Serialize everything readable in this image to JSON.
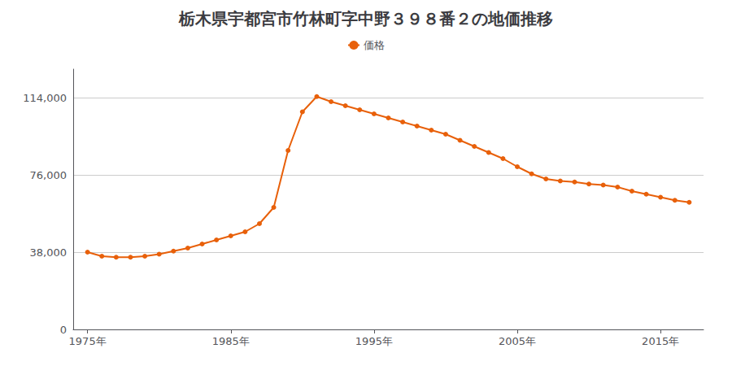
{
  "chart_data": {
    "type": "line",
    "title": "栃木県宇都宮市竹林町字中野３９８番２の地価推移",
    "x": [
      1975,
      1976,
      1977,
      1978,
      1979,
      1980,
      1981,
      1982,
      1983,
      1984,
      1985,
      1986,
      1987,
      1988,
      1989,
      1990,
      1991,
      1992,
      1993,
      1994,
      1995,
      1996,
      1997,
      1998,
      1999,
      2000,
      2001,
      2002,
      2003,
      2004,
      2005,
      2006,
      2007,
      2008,
      2009,
      2010,
      2011,
      2012,
      2013,
      2014,
      2015,
      2016,
      2017
    ],
    "series": [
      {
        "name": "価格",
        "color": "#E8600A",
        "marker": "circle",
        "values": [
          38000,
          36000,
          35500,
          35500,
          36000,
          37000,
          38500,
          40000,
          42000,
          44000,
          46000,
          48000,
          52000,
          60000,
          88000,
          107000,
          114500,
          112000,
          110000,
          108000,
          106000,
          104000,
          102000,
          100000,
          98000,
          96000,
          93000,
          90000,
          87000,
          84000,
          80000,
          76500,
          74000,
          73000,
          72500,
          71500,
          71000,
          70000,
          68000,
          66500,
          65000,
          63500,
          62500
        ]
      }
    ],
    "xlim": [
      1974,
      2018
    ],
    "xticks": [
      {
        "value": 1975,
        "label": "1975年"
      },
      {
        "value": 1985,
        "label": "1985年"
      },
      {
        "value": 1995,
        "label": "1995年"
      },
      {
        "value": 2005,
        "label": "2005年"
      },
      {
        "value": 2015,
        "label": "2015年"
      }
    ],
    "ylim": [
      0,
      128000
    ],
    "yticks": [
      0,
      {
        "value": 38000,
        "label": "38,000"
      },
      {
        "value": 76000,
        "label": "76,000"
      },
      {
        "value": 114000,
        "label": "114,000"
      }
    ],
    "grid": true,
    "legend": "top"
  }
}
